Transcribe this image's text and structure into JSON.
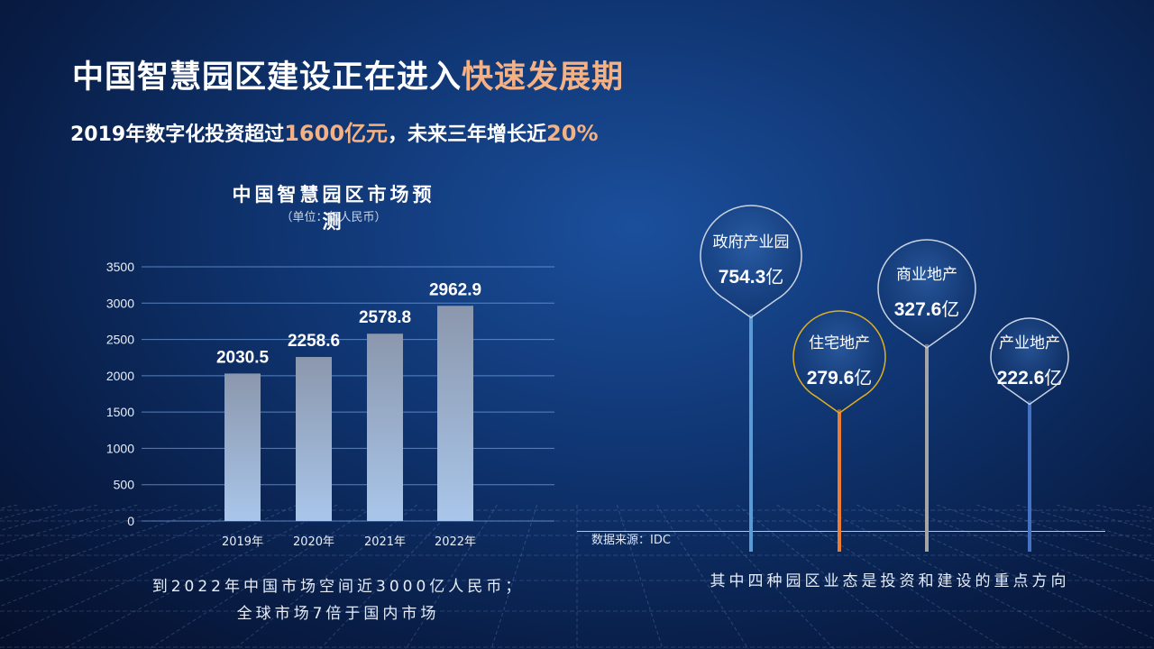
{
  "header": {
    "title_main": "中国智慧园区建设正在进入",
    "title_highlight": "快速发展期",
    "subtitle_pre": "2019年数字化投资超过",
    "subtitle_amount": "1600亿元",
    "subtitle_mid": "，未来三年增长近",
    "subtitle_pct": "20%"
  },
  "chart_data": [
    {
      "type": "bar",
      "title": "中国智慧园区市场预测",
      "unit": "（单位：亿人民币）",
      "categories": [
        "2019年",
        "2020年",
        "2021年",
        "2022年"
      ],
      "values": [
        2030.5,
        2258.6,
        2578.8,
        2962.9
      ],
      "value_labels": [
        "2030.5",
        "2258.6",
        "2578.8",
        "2962.9"
      ],
      "yticks": [
        "0",
        "500",
        "1000",
        "1500",
        "2000",
        "2500",
        "3000",
        "3500"
      ],
      "ylim": [
        0,
        3500
      ],
      "grid": true,
      "legend": "none",
      "bar_color_top": "#8b97ad",
      "bar_color_bottom": "#a9c6ea"
    },
    {
      "type": "bar",
      "categories": [
        "政府产业园",
        "住宅地产",
        "商业地产",
        "产业地产"
      ],
      "values": [
        754.3,
        279.6,
        327.6,
        222.6
      ],
      "value_labels": [
        "754.3",
        "279.6",
        "327.6",
        "222.6"
      ],
      "value_unit": "亿",
      "colors": [
        "#5b9bd5",
        "#ed7d31",
        "#a5a5a5",
        "#4472c4"
      ],
      "bubble_outline": [
        "#c8d2e2",
        "#e0b020",
        "#c8d2e2",
        "#c8d2e2"
      ]
    }
  ],
  "footer": {
    "source": "数据来源：IDC",
    "left_note_line1": "到2022年中国市场空间近3000亿人民币；",
    "left_note_line2": "全球市场7倍于国内市场",
    "right_note": "其中四种园区业态是投资和建设的重点方向"
  }
}
